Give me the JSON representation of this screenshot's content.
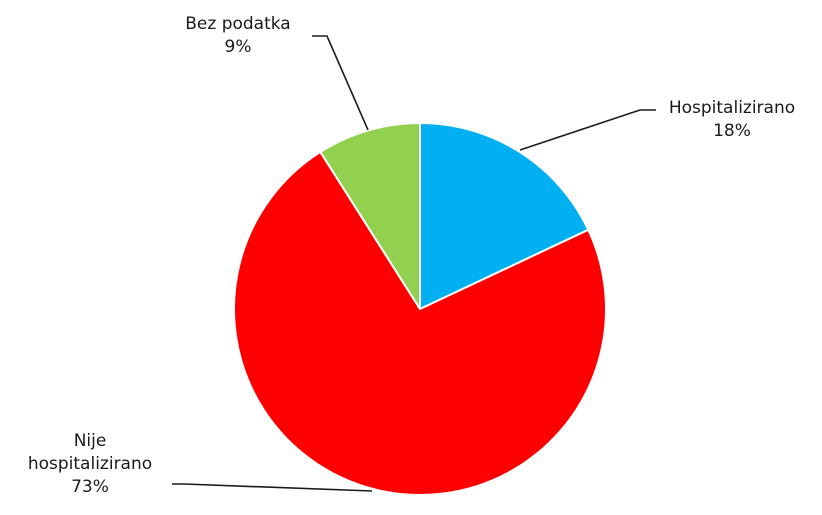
{
  "chart_data": {
    "type": "pie",
    "title": "",
    "slices": [
      {
        "label": "Hospitalizirano",
        "value": 18,
        "display": "18%",
        "color": "#00b0f0"
      },
      {
        "label": "Nije hospitalizirano",
        "label_lines": [
          "Nije",
          "hospitalizirano"
        ],
        "value": 73,
        "display": "73%",
        "color": "#ff0000"
      },
      {
        "label": "Bez podatka",
        "value": 9,
        "display": "9%",
        "color": "#92d050"
      }
    ],
    "legend": "none",
    "start_angle": "12 o'clock",
    "direction": "clockwise"
  }
}
